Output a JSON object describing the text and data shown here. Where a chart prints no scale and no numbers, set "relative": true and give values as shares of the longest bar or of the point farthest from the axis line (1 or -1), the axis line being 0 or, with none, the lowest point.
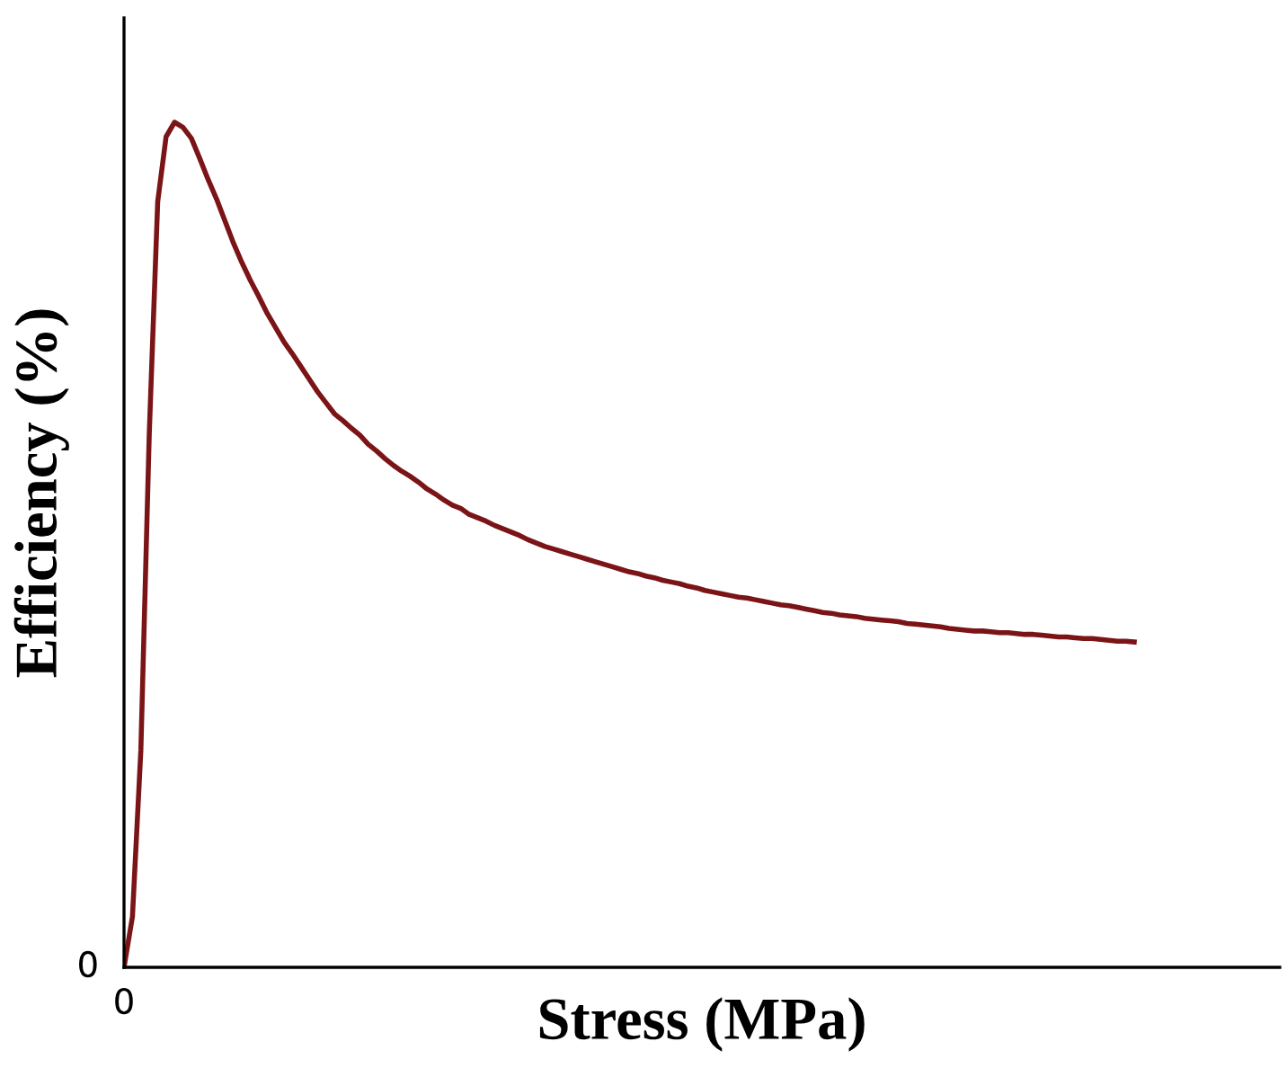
{
  "chart_data": {
    "type": "line",
    "xlabel": "Stress (MPa)",
    "ylabel": "Efficiency (%)",
    "relative": true,
    "annotations": [
      "0",
      "0"
    ],
    "categories": [
      null,
      null,
      null,
      null,
      null,
      null,
      null,
      null,
      null,
      null,
      null,
      null,
      null,
      null,
      null,
      null,
      null,
      null,
      null,
      null,
      null,
      null,
      null,
      null,
      null,
      null,
      null,
      null,
      null,
      null,
      null,
      null,
      null,
      null,
      null,
      null,
      null,
      null,
      null,
      null,
      null,
      null,
      null,
      null,
      null,
      null,
      null,
      null,
      null,
      null,
      null,
      null,
      null,
      null,
      null,
      null,
      null,
      null,
      null,
      null,
      null,
      null,
      null,
      null,
      null,
      null,
      null,
      null,
      null,
      null,
      null,
      null,
      null,
      null,
      null,
      null,
      null,
      null,
      null,
      null,
      null,
      null,
      null,
      null,
      null,
      null,
      null,
      null,
      null,
      null,
      null,
      null,
      null,
      null,
      null,
      null,
      null,
      null,
      null,
      null,
      null,
      null,
      null,
      null,
      null,
      null,
      null,
      null,
      null,
      null,
      null,
      null,
      null,
      null,
      null,
      null,
      null,
      null,
      null,
      null,
      null
    ],
    "series": [
      {
        "color": "#7b1416",
        "values": [
          0,
          0.06,
          0.257,
          0.632,
          0.906,
          0.983,
          1.0,
          0.994,
          0.981,
          0.957,
          0.932,
          0.909,
          0.883,
          0.857,
          0.834,
          0.813,
          0.794,
          0.774,
          0.757,
          0.74,
          0.726,
          0.711,
          0.696,
          0.681,
          0.668,
          0.655,
          0.647,
          0.638,
          0.63,
          0.619,
          0.611,
          0.602,
          0.594,
          0.587,
          0.581,
          0.574,
          0.566,
          0.56,
          0.553,
          0.547,
          0.543,
          0.536,
          0.532,
          0.528,
          0.523,
          0.519,
          0.515,
          0.511,
          0.506,
          0.502,
          0.498,
          0.495,
          0.492,
          0.489,
          0.486,
          0.483,
          0.48,
          0.477,
          0.474,
          0.471,
          0.468,
          0.466,
          0.463,
          0.461,
          0.458,
          0.456,
          0.454,
          0.451,
          0.449,
          0.446,
          0.444,
          0.442,
          0.44,
          0.438,
          0.437,
          0.435,
          0.433,
          0.431,
          0.429,
          0.428,
          0.426,
          0.424,
          0.422,
          0.42,
          0.419,
          0.417,
          0.416,
          0.415,
          0.413,
          0.412,
          0.411,
          0.41,
          0.409,
          0.407,
          0.406,
          0.405,
          0.404,
          0.403,
          0.401,
          0.4,
          0.399,
          0.398,
          0.398,
          0.397,
          0.396,
          0.396,
          0.395,
          0.394,
          0.394,
          0.393,
          0.392,
          0.391,
          0.391,
          0.39,
          0.389,
          0.389,
          0.388,
          0.387,
          0.386,
          0.386,
          0.385
        ]
      }
    ]
  }
}
